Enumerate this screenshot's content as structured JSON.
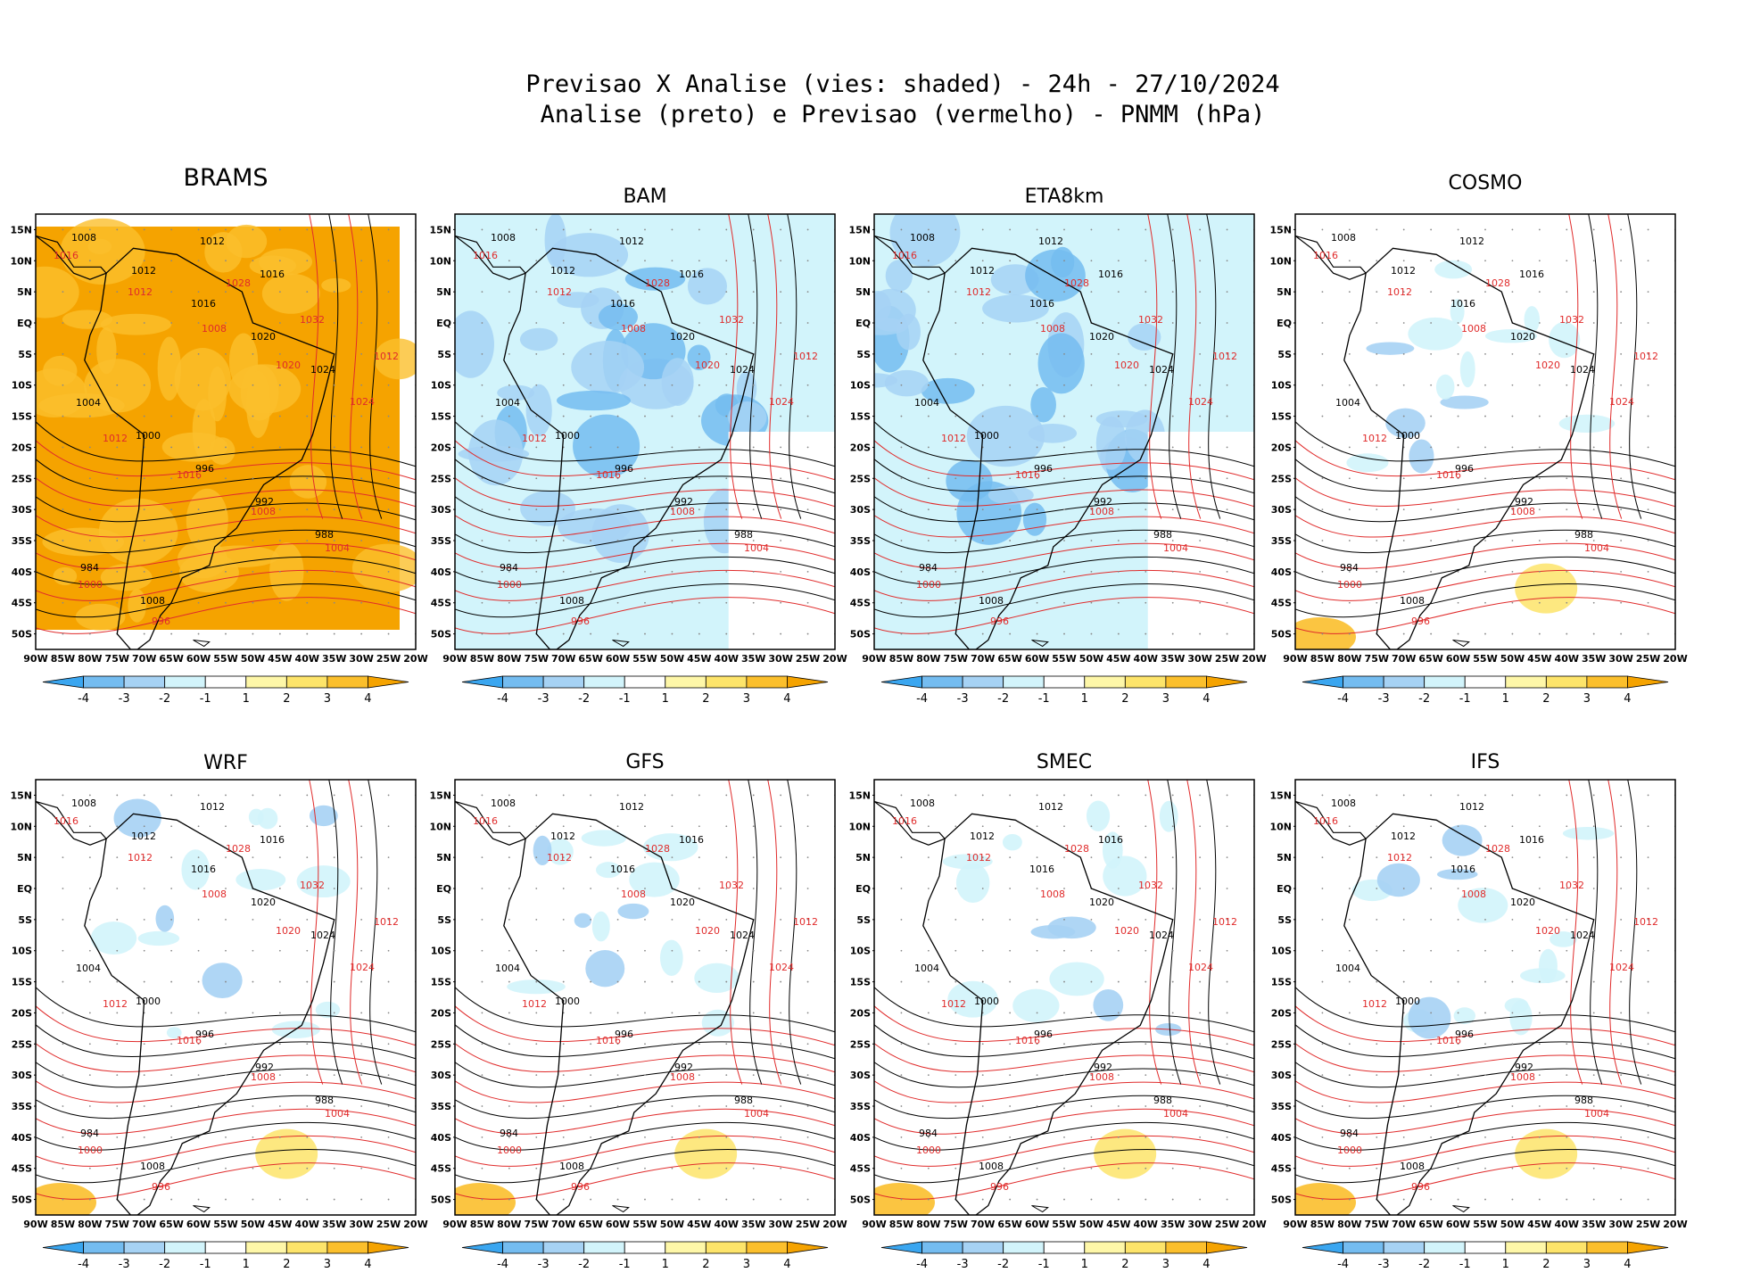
{
  "figure": {
    "title_line1": "Previsao X Analise (vies: shaded) - 24h - 27/10/2024",
    "title_line2": "Analise (preto) e Previsao (vermelho) - PNMM (hPa)"
  },
  "axes": {
    "lat_labels": [
      "15N",
      "10N",
      "5N",
      "EQ",
      "5S",
      "10S",
      "15S",
      "20S",
      "25S",
      "30S",
      "35S",
      "40S",
      "45S",
      "50S"
    ],
    "lon_labels": [
      "90W",
      "85W",
      "80W",
      "75W",
      "70W",
      "65W",
      "60W",
      "55W",
      "50W",
      "45W",
      "40W",
      "35W",
      "30W",
      "25W",
      "20W"
    ],
    "lat_values": [
      15,
      10,
      5,
      0,
      -5,
      -10,
      -15,
      -20,
      -25,
      -30,
      -35,
      -40,
      -45,
      -50
    ],
    "lon_values": [
      -90,
      -85,
      -80,
      -75,
      -70,
      -65,
      -60,
      -55,
      -50,
      -45,
      -40,
      -35,
      -30,
      -25,
      -20
    ],
    "lat_range": [
      -52.5,
      17.5
    ],
    "lon_range": [
      -90,
      -20
    ]
  },
  "colorbar": {
    "labels": [
      "-4",
      "-3",
      "-2",
      "-1",
      "1",
      "2",
      "3",
      "4"
    ],
    "colors": [
      "#3aa6f0",
      "#74bcf0",
      "#a6d2f4",
      "#d2f4fb",
      "#ffffff",
      "#fef7a8",
      "#fde46a",
      "#fbbf2c",
      "#f5a300"
    ]
  },
  "contour_colors": {
    "analysis": "#000000",
    "forecast": "#e02b2b"
  },
  "panels": [
    {
      "name": "BRAMS",
      "bias": "warm"
    },
    {
      "name": "BAM",
      "bias": "cool"
    },
    {
      "name": "ETA8km",
      "bias": "cool"
    },
    {
      "name": "COSMO",
      "bias": "light"
    },
    {
      "name": "WRF",
      "bias": "light"
    },
    {
      "name": "GFS",
      "bias": "light"
    },
    {
      "name": "SMEC",
      "bias": "light"
    },
    {
      "name": "IFS",
      "bias": "light"
    }
  ],
  "contour_labels": {
    "analysis": [
      "1008",
      "1012",
      "1016",
      "1020",
      "1024",
      "1004",
      "1000",
      "996",
      "992",
      "988",
      "984",
      "1008",
      "1012",
      "1016"
    ],
    "forecast": [
      "1016",
      "1012",
      "1008",
      "1020",
      "1024",
      "1012",
      "1016",
      "1008",
      "1004",
      "1000",
      "996",
      "1028",
      "1032",
      "1012"
    ]
  }
}
